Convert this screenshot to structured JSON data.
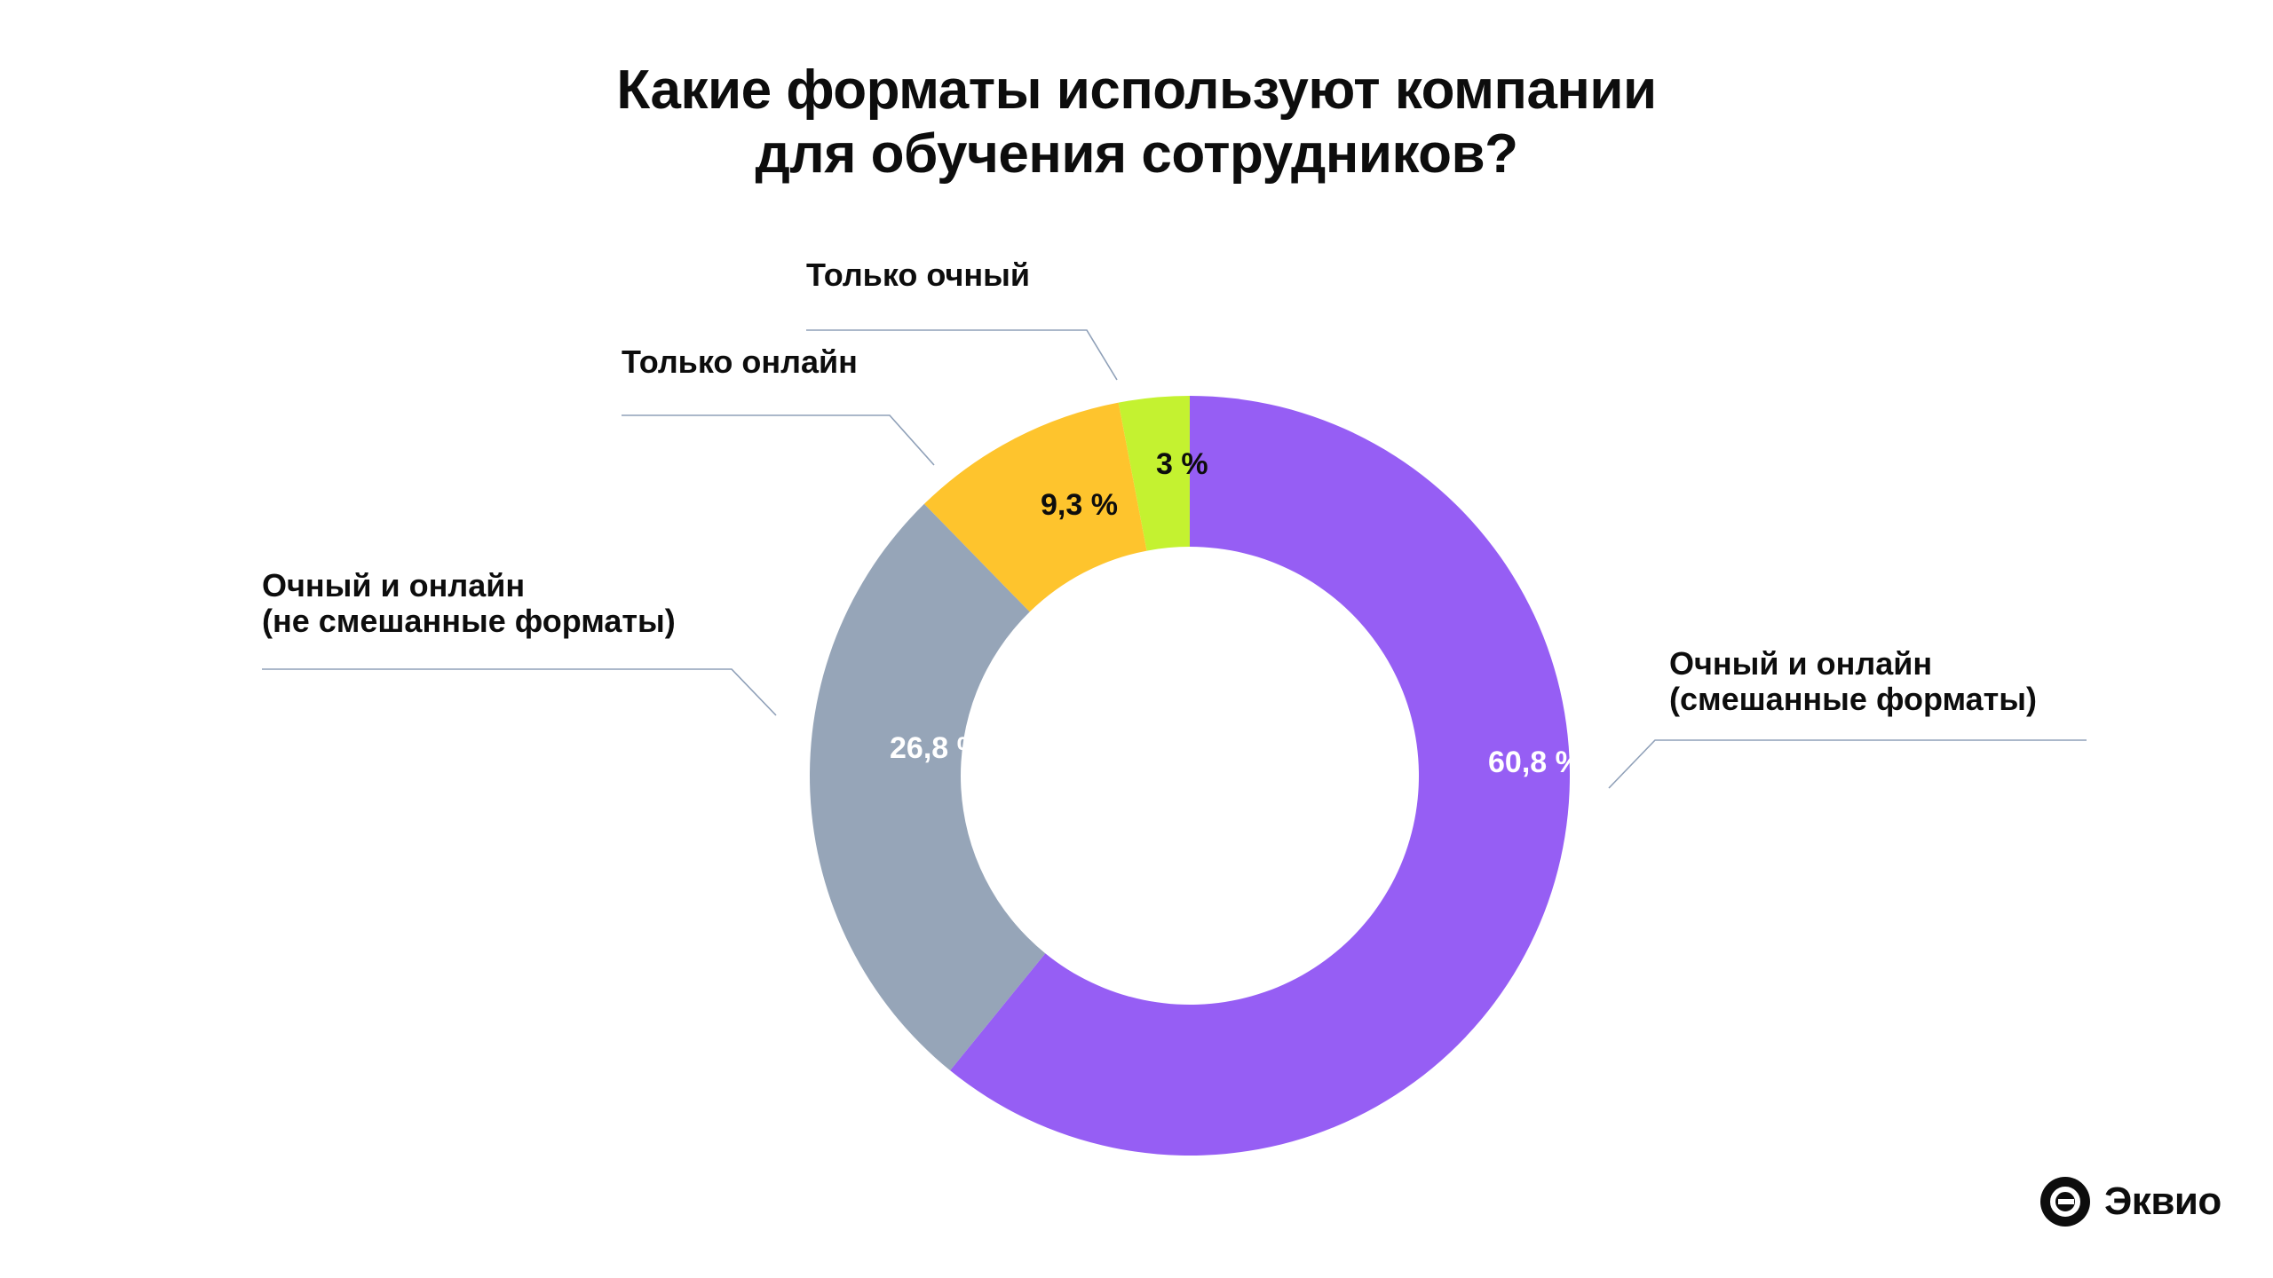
{
  "header": {
    "title_line1": "Какие форматы используют компании",
    "title_line2": "для обучения сотрудников?"
  },
  "chart_data": {
    "type": "pie",
    "variant": "donut",
    "title": "Какие форматы используют компании для обучения сотрудников?",
    "unit": "%",
    "slices": [
      {
        "label": "Очный и онлайн (смешанные форматы)",
        "label_lines": [
          "Очный и онлайн",
          "(смешанные форматы)"
        ],
        "value": 60.8,
        "display": "60,8 %",
        "color": "#965ef4",
        "value_color": "#ffffff"
      },
      {
        "label": "Очный и онлайн (не смешанные форматы)",
        "label_lines": [
          "Очный и онлайн",
          "(не смешанные форматы)"
        ],
        "value": 26.8,
        "display": "26,8 %",
        "color": "#96a5b8",
        "value_color": "#ffffff"
      },
      {
        "label": "Только онлайн",
        "label_lines": [
          "Только онлайн"
        ],
        "value": 9.3,
        "display": "9,3 %",
        "color": "#fec42d",
        "value_color": "#0d0d0d"
      },
      {
        "label": "Только очный",
        "label_lines": [
          "Только очный"
        ],
        "value": 3,
        "display": "3 %",
        "color": "#c4f230",
        "value_color": "#0d0d0d"
      }
    ]
  },
  "brand": {
    "name": "Эквио",
    "icon": "ekvio-logo-icon"
  }
}
